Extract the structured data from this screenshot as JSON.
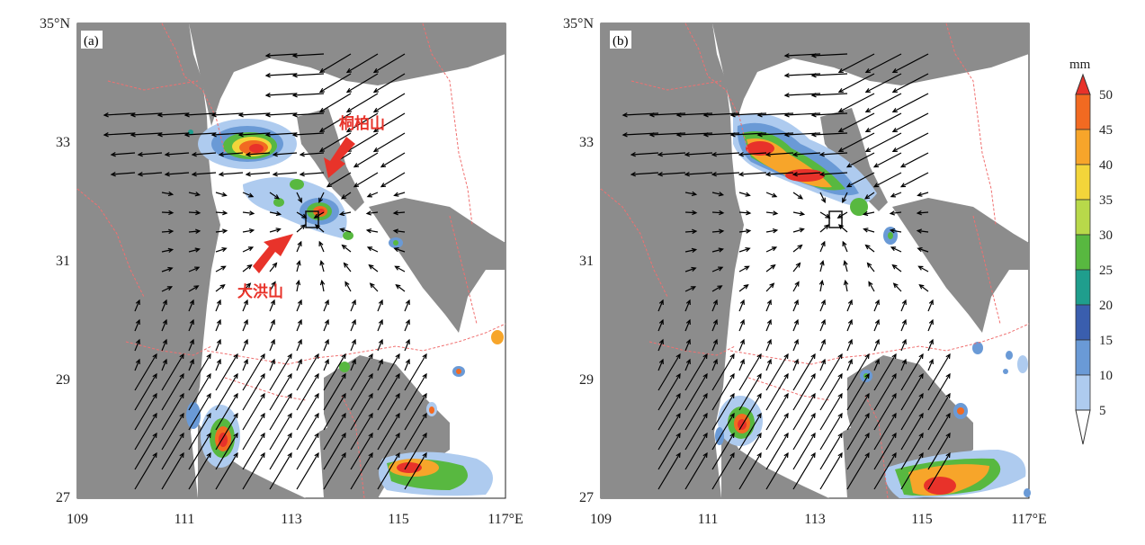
{
  "panels": [
    {
      "label": "(a)",
      "annotations": [
        "桐柏山",
        "大洪山"
      ],
      "x_ticks": [
        "109",
        "111",
        "113",
        "115",
        "117°E"
      ],
      "y_ticks": [
        "35°N",
        "33",
        "31",
        "29",
        "27"
      ]
    },
    {
      "label": "(b)",
      "annotations": [],
      "x_ticks": [
        "109",
        "111",
        "113",
        "115",
        "117°E"
      ],
      "y_ticks": [
        "35°N",
        "33",
        "31",
        "29",
        "27"
      ]
    }
  ],
  "colorbar": {
    "unit": "mm",
    "levels": [
      "50",
      "45",
      "40",
      "35",
      "30",
      "25",
      "20",
      "15",
      "10",
      "5"
    ],
    "colors": [
      "#e8322a",
      "#f26a21",
      "#f7a52a",
      "#f3d53a",
      "#b8d94a",
      "#58b840",
      "#1f9e8d",
      "#3a5eae",
      "#6a9ad6",
      "#aecbef",
      "#ddeafb"
    ]
  },
  "colors": {
    "terrain": "#8c8c8c",
    "boundary": "#f07070"
  }
}
